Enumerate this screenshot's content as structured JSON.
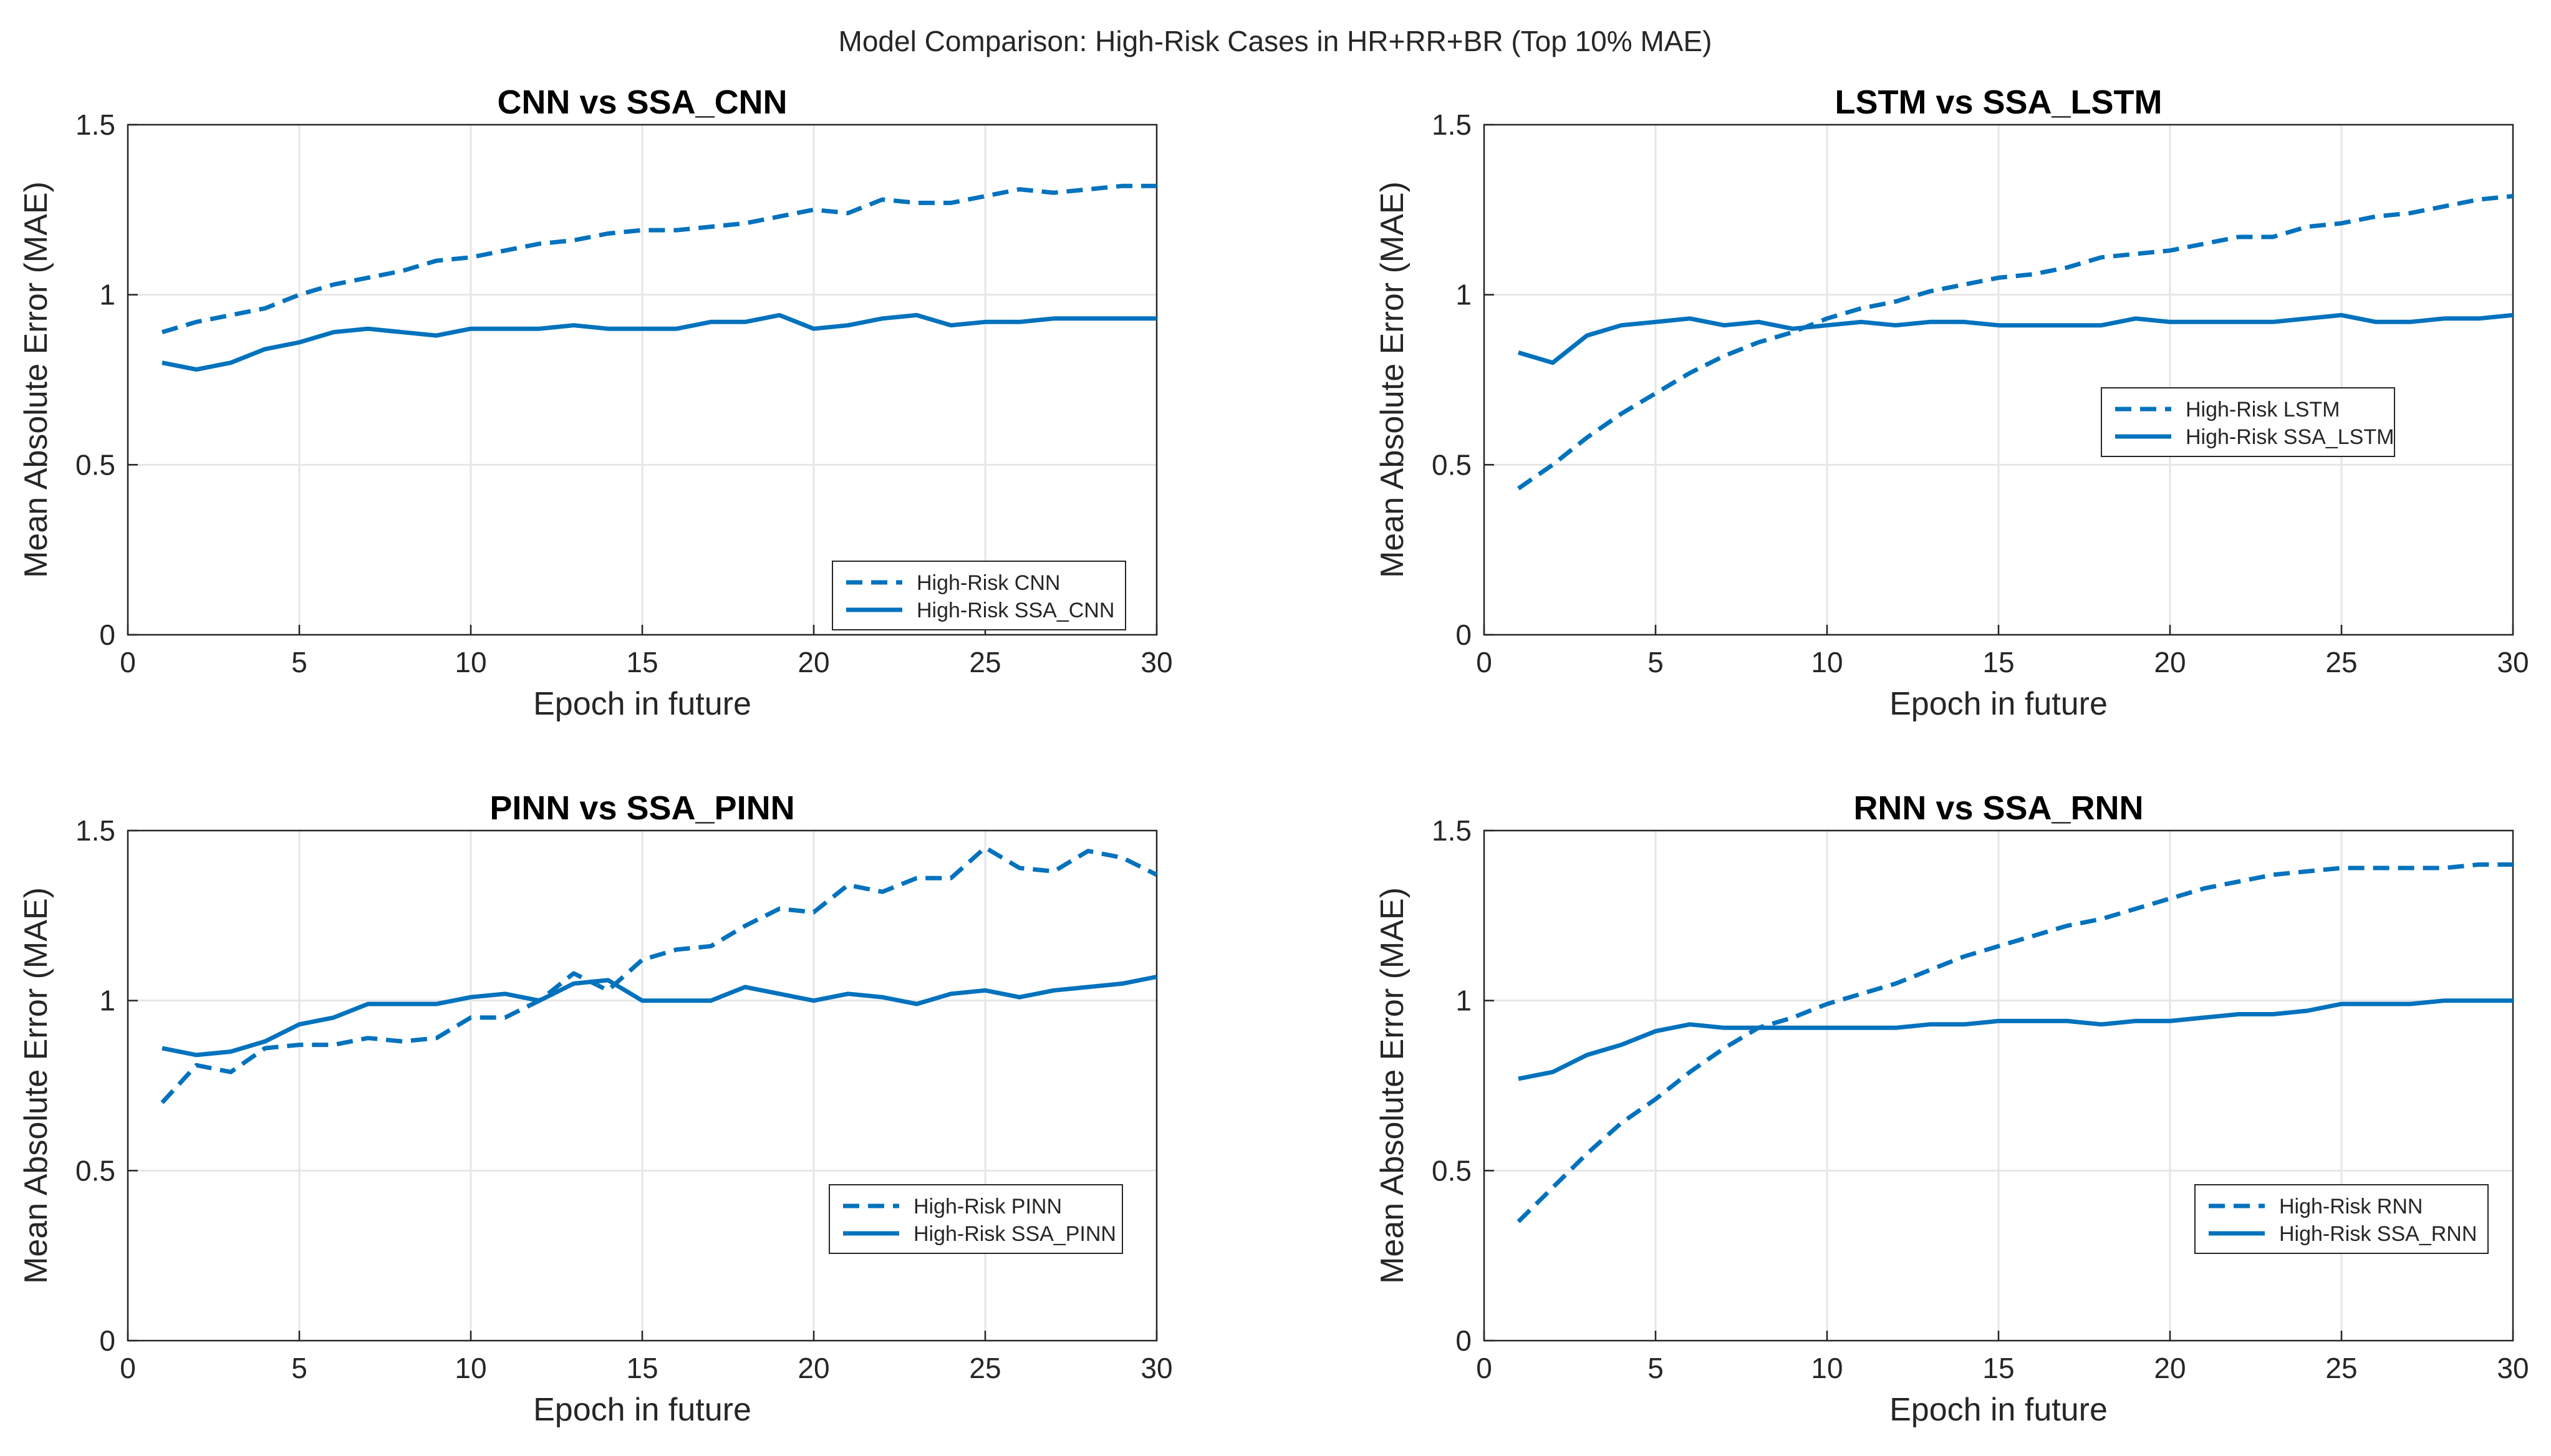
{
  "figure": {
    "title": "Model Comparison: High-Risk Cases in HR+RR+BR (Top 10% MAE)",
    "series_color": "#0072BD"
  },
  "chart_data": [
    {
      "type": "line",
      "title": "CNN vs SSA_CNN",
      "xlabel": "Epoch in future",
      "ylabel": "Mean Absolute Error (MAE)",
      "xlim": [
        0,
        30
      ],
      "ylim": [
        0,
        1.5
      ],
      "xticks": [
        0,
        5,
        10,
        15,
        20,
        25,
        30
      ],
      "yticks": [
        0,
        0.5,
        1,
        1.5
      ],
      "grid": true,
      "legend_position": "bottom-right",
      "x": [
        1,
        2,
        3,
        4,
        5,
        6,
        7,
        8,
        9,
        10,
        11,
        12,
        13,
        14,
        15,
        16,
        17,
        18,
        19,
        20,
        21,
        22,
        23,
        24,
        25,
        26,
        27,
        28,
        29,
        30
      ],
      "series": [
        {
          "name": "High-Risk CNN",
          "style": "dashed",
          "values": [
            0.89,
            0.92,
            0.94,
            0.96,
            1.0,
            1.03,
            1.05,
            1.07,
            1.1,
            1.11,
            1.13,
            1.15,
            1.16,
            1.18,
            1.19,
            1.19,
            1.2,
            1.21,
            1.23,
            1.25,
            1.24,
            1.28,
            1.27,
            1.27,
            1.29,
            1.31,
            1.3,
            1.31,
            1.32,
            1.32
          ]
        },
        {
          "name": "High-Risk SSA_CNN",
          "style": "solid",
          "values": [
            0.8,
            0.78,
            0.8,
            0.84,
            0.86,
            0.89,
            0.9,
            0.89,
            0.88,
            0.9,
            0.9,
            0.9,
            0.91,
            0.9,
            0.9,
            0.9,
            0.92,
            0.92,
            0.94,
            0.9,
            0.91,
            0.93,
            0.94,
            0.91,
            0.92,
            0.92,
            0.93,
            0.93,
            0.93,
            0.93
          ]
        }
      ]
    },
    {
      "type": "line",
      "title": "LSTM vs SSA_LSTM",
      "xlabel": "Epoch in future",
      "ylabel": "Mean Absolute Error (MAE)",
      "xlim": [
        0,
        30
      ],
      "ylim": [
        0,
        1.5
      ],
      "xticks": [
        0,
        5,
        10,
        15,
        20,
        25,
        30
      ],
      "yticks": [
        0,
        0.5,
        1,
        1.5
      ],
      "grid": true,
      "legend_position": "center-right",
      "x": [
        1,
        2,
        3,
        4,
        5,
        6,
        7,
        8,
        9,
        10,
        11,
        12,
        13,
        14,
        15,
        16,
        17,
        18,
        19,
        20,
        21,
        22,
        23,
        24,
        25,
        26,
        27,
        28,
        29,
        30
      ],
      "series": [
        {
          "name": "High-Risk LSTM",
          "style": "dashed",
          "values": [
            0.43,
            0.5,
            0.58,
            0.65,
            0.71,
            0.77,
            0.82,
            0.86,
            0.89,
            0.93,
            0.96,
            0.98,
            1.01,
            1.03,
            1.05,
            1.06,
            1.08,
            1.11,
            1.12,
            1.13,
            1.15,
            1.17,
            1.17,
            1.2,
            1.21,
            1.23,
            1.24,
            1.26,
            1.28,
            1.29
          ]
        },
        {
          "name": "High-Risk SSA_LSTM",
          "style": "solid",
          "values": [
            0.83,
            0.8,
            0.88,
            0.91,
            0.92,
            0.93,
            0.91,
            0.92,
            0.9,
            0.91,
            0.92,
            0.91,
            0.92,
            0.92,
            0.91,
            0.91,
            0.91,
            0.91,
            0.93,
            0.92,
            0.92,
            0.92,
            0.92,
            0.93,
            0.94,
            0.92,
            0.92,
            0.93,
            0.93,
            0.94
          ]
        }
      ]
    },
    {
      "type": "line",
      "title": "PINN vs SSA_PINN",
      "xlabel": "Epoch in future",
      "ylabel": "Mean Absolute Error (MAE)",
      "xlim": [
        0,
        30
      ],
      "ylim": [
        0,
        1.5
      ],
      "xticks": [
        0,
        5,
        10,
        15,
        20,
        25,
        30
      ],
      "yticks": [
        0,
        0.5,
        1,
        1.5
      ],
      "grid": true,
      "legend_position": "bottom-right",
      "x": [
        1,
        2,
        3,
        4,
        5,
        6,
        7,
        8,
        9,
        10,
        11,
        12,
        13,
        14,
        15,
        16,
        17,
        18,
        19,
        20,
        21,
        22,
        23,
        24,
        25,
        26,
        27,
        28,
        29,
        30
      ],
      "series": [
        {
          "name": "High-Risk PINN",
          "style": "dashed",
          "values": [
            0.7,
            0.81,
            0.79,
            0.86,
            0.87,
            0.87,
            0.89,
            0.88,
            0.89,
            0.95,
            0.95,
            1.0,
            1.08,
            1.03,
            1.12,
            1.15,
            1.16,
            1.22,
            1.27,
            1.26,
            1.34,
            1.32,
            1.36,
            1.36,
            1.45,
            1.39,
            1.38,
            1.44,
            1.42,
            1.37
          ]
        },
        {
          "name": "High-Risk SSA_PINN",
          "style": "solid",
          "values": [
            0.86,
            0.84,
            0.85,
            0.88,
            0.93,
            0.95,
            0.99,
            0.99,
            0.99,
            1.01,
            1.02,
            1.0,
            1.05,
            1.06,
            1.0,
            1.0,
            1.0,
            1.04,
            1.02,
            1.0,
            1.02,
            1.01,
            0.99,
            1.02,
            1.03,
            1.01,
            1.03,
            1.04,
            1.05,
            1.07
          ]
        }
      ]
    },
    {
      "type": "line",
      "title": "RNN vs SSA_RNN",
      "xlabel": "Epoch in future",
      "ylabel": "Mean Absolute Error (MAE)",
      "xlim": [
        0,
        30
      ],
      "ylim": [
        0,
        1.5
      ],
      "xticks": [
        0,
        5,
        10,
        15,
        20,
        25,
        30
      ],
      "yticks": [
        0,
        0.5,
        1,
        1.5
      ],
      "grid": true,
      "legend_position": "bottom-right",
      "x": [
        1,
        2,
        3,
        4,
        5,
        6,
        7,
        8,
        9,
        10,
        11,
        12,
        13,
        14,
        15,
        16,
        17,
        18,
        19,
        20,
        21,
        22,
        23,
        24,
        25,
        26,
        27,
        28,
        29,
        30
      ],
      "series": [
        {
          "name": "High-Risk RNN",
          "style": "dashed",
          "values": [
            0.35,
            0.45,
            0.55,
            0.64,
            0.71,
            0.79,
            0.86,
            0.92,
            0.95,
            0.99,
            1.02,
            1.05,
            1.09,
            1.13,
            1.16,
            1.19,
            1.22,
            1.24,
            1.27,
            1.3,
            1.33,
            1.35,
            1.37,
            1.38,
            1.39,
            1.39,
            1.39,
            1.39,
            1.4,
            1.4
          ]
        },
        {
          "name": "High-Risk SSA_RNN",
          "style": "solid",
          "values": [
            0.77,
            0.79,
            0.84,
            0.87,
            0.91,
            0.93,
            0.92,
            0.92,
            0.92,
            0.92,
            0.92,
            0.92,
            0.93,
            0.93,
            0.94,
            0.94,
            0.94,
            0.93,
            0.94,
            0.94,
            0.95,
            0.96,
            0.96,
            0.97,
            0.99,
            0.99,
            0.99,
            1.0,
            1.0,
            1.0
          ]
        }
      ]
    }
  ]
}
